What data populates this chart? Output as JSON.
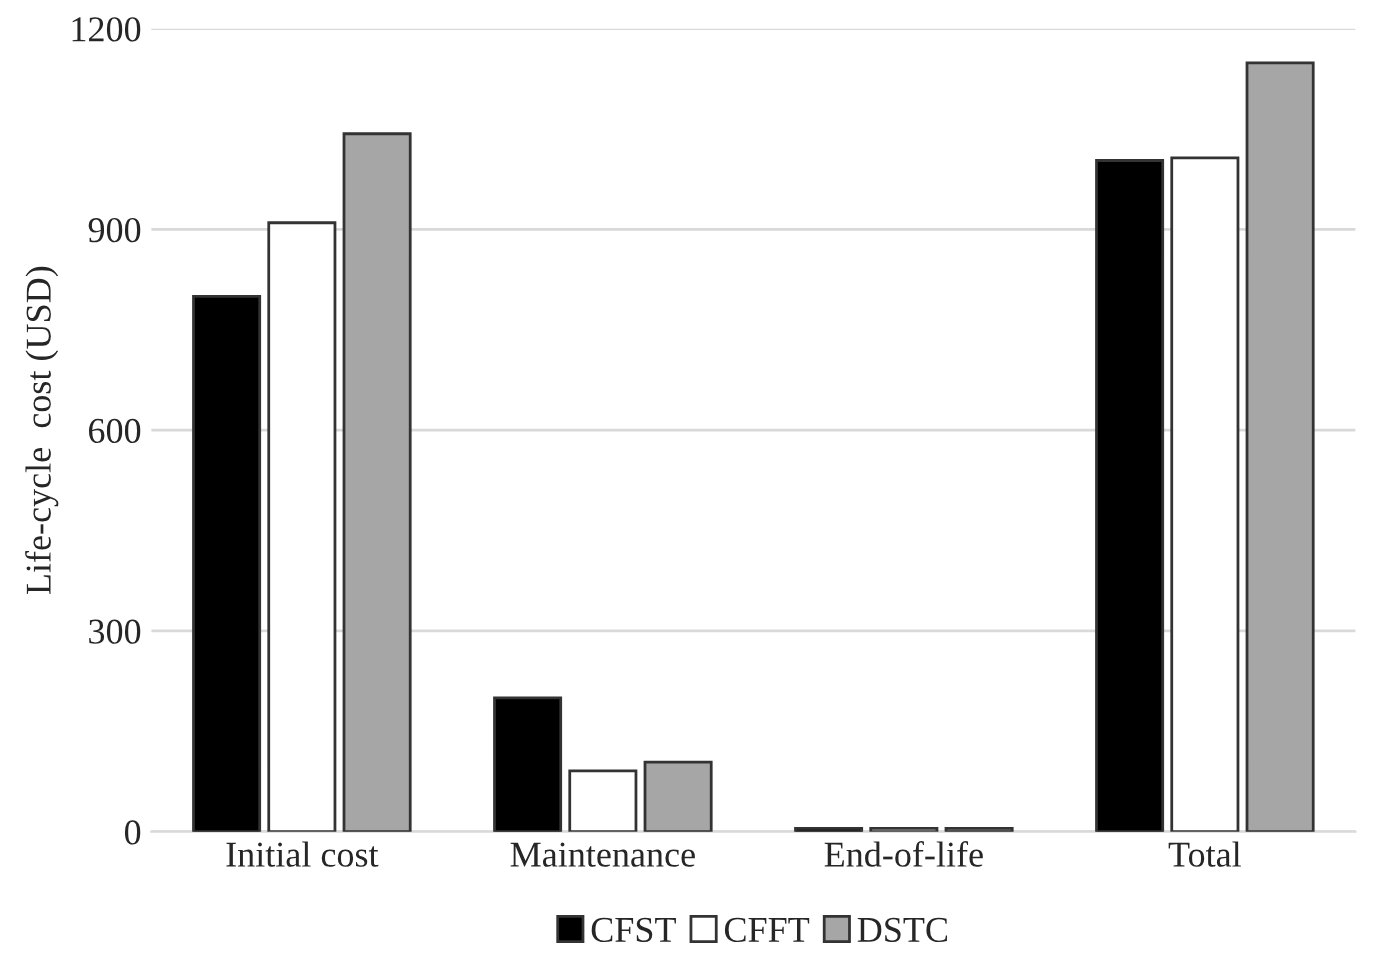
{
  "chart_data": {
    "type": "bar",
    "ylabel": "Life-cycle  cost (USD)",
    "categories": [
      "Initial cost",
      "Maintenance",
      "End-of-life",
      "Total"
    ],
    "series": [
      {
        "name": "CFST",
        "color": "#000000",
        "values": [
          800,
          200,
          5,
          1003
        ]
      },
      {
        "name": "CFFT",
        "color": "#ffffff",
        "values": [
          910,
          91,
          5,
          1007
        ]
      },
      {
        "name": "DSTC",
        "color": "#a6a6a6",
        "values": [
          1043,
          104,
          5,
          1149
        ]
      }
    ],
    "ylim": [
      0,
      1200
    ],
    "yticks": [
      0,
      300,
      600,
      900,
      1200
    ],
    "grid": "y",
    "legend": "bottom"
  }
}
